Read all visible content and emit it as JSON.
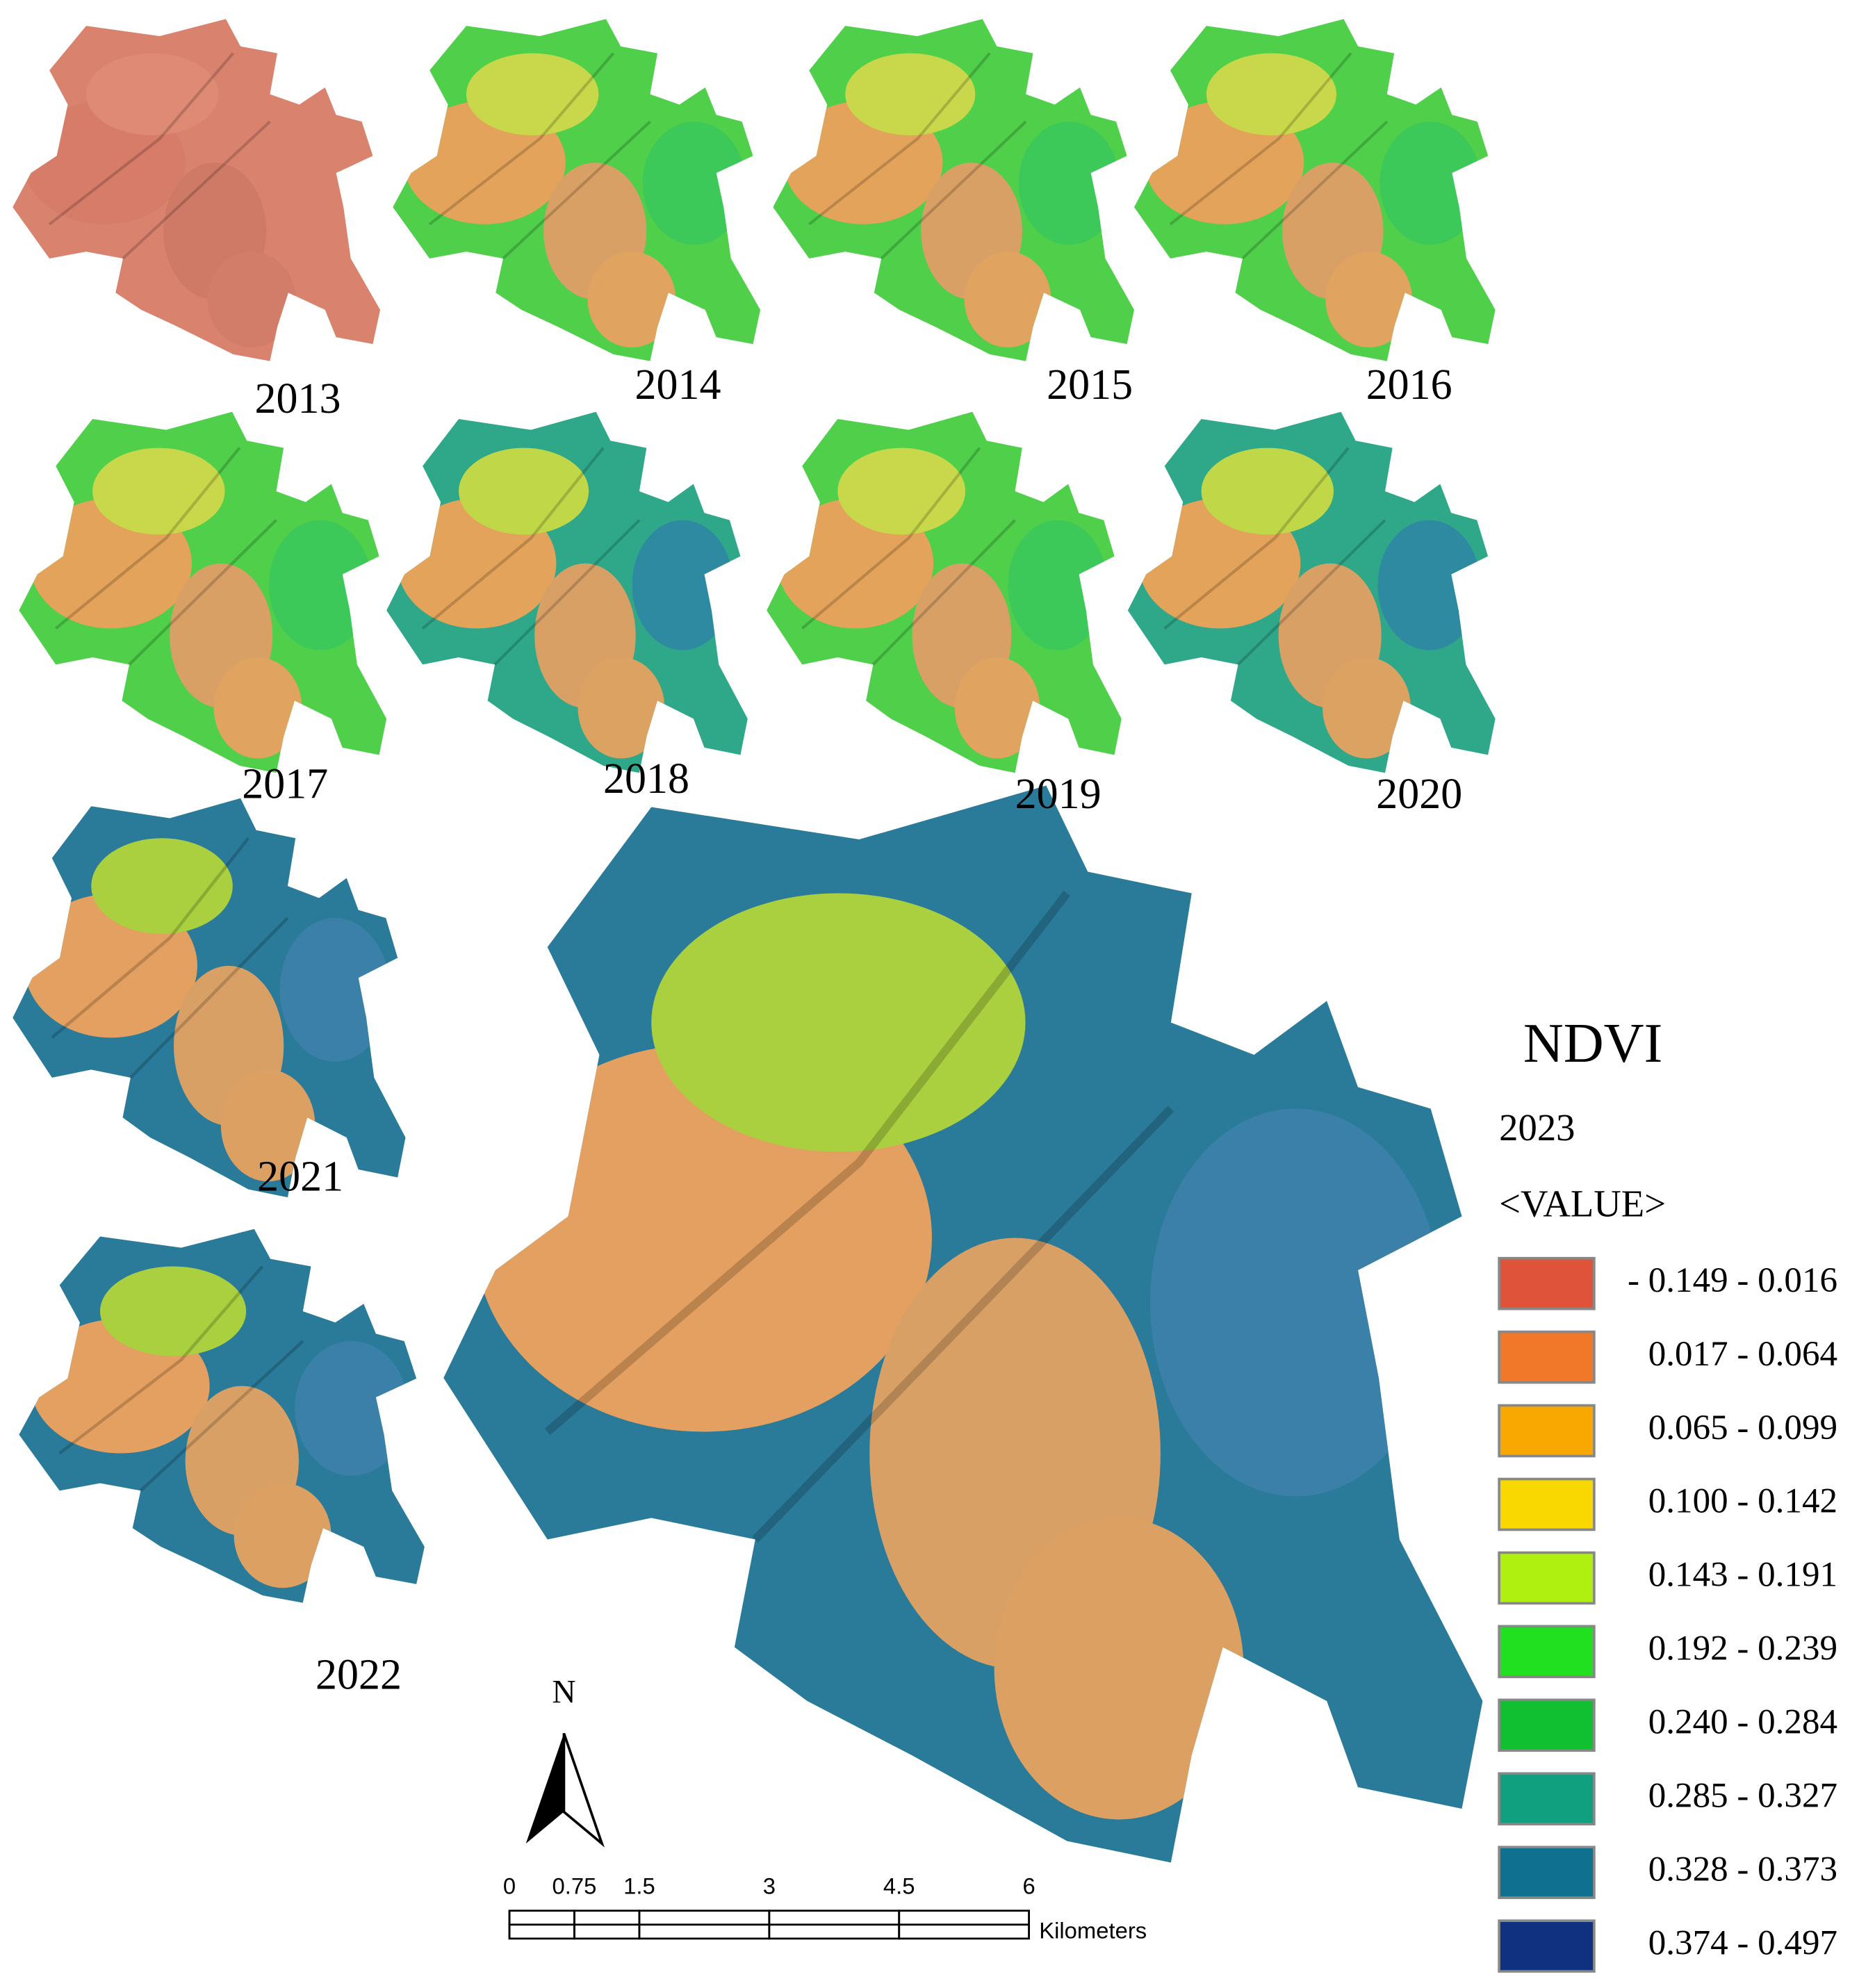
{
  "maps": [
    {
      "year": "2013"
    },
    {
      "year": "2014"
    },
    {
      "year": "2015"
    },
    {
      "year": "2016"
    },
    {
      "year": "2017"
    },
    {
      "year": "2018"
    },
    {
      "year": "2019"
    },
    {
      "year": "2020"
    },
    {
      "year": "2021"
    },
    {
      "year": "2022"
    }
  ],
  "legend": {
    "title": "NDVI",
    "year": "2023",
    "field": "<VALUE>",
    "classes": [
      {
        "label": "- 0.149 - 0.016",
        "color": "#e0533b"
      },
      {
        "label": "0.017 - 0.064",
        "color": "#f07828"
      },
      {
        "label": "0.065 - 0.099",
        "color": "#f8a800"
      },
      {
        "label": "0.100 - 0.142",
        "color": "#f8d800"
      },
      {
        "label": "0.143 - 0.191",
        "color": "#b0f010"
      },
      {
        "label": "0.192 - 0.239",
        "color": "#20e020"
      },
      {
        "label": "0.240 - 0.284",
        "color": "#10c030"
      },
      {
        "label": "0.285 - 0.327",
        "color": "#10a080"
      },
      {
        "label": "0.328 - 0.373",
        "color": "#107090"
      },
      {
        "label": "0.374 - 0.497",
        "color": "#103080"
      }
    ]
  },
  "north_arrow": "N",
  "scale_bar": {
    "ticks": [
      0,
      0.75,
      1.5,
      3,
      4.5,
      6
    ],
    "unit": "Kilometers"
  }
}
